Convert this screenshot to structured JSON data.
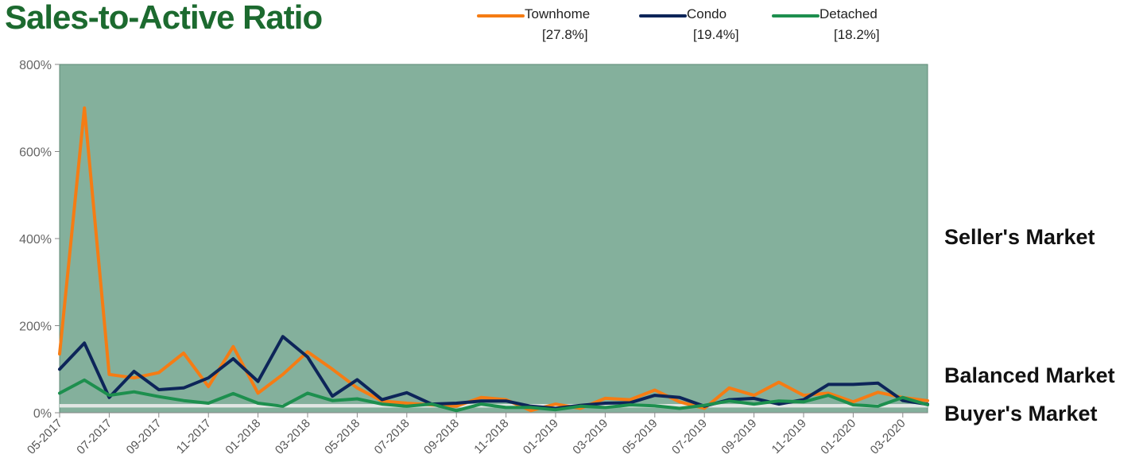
{
  "title": "Sales-to-Active Ratio",
  "zones": {
    "seller": "Seller's Market",
    "balanced": "Balanced Market",
    "buyer": "Buyer's Market"
  },
  "colors": {
    "plot_bg": "#84b09c",
    "balanced_band": "#e2e6e4",
    "title": "#1c6a2f"
  },
  "chart_data": {
    "type": "line",
    "title": "Sales-to-Active Ratio",
    "ylim": [
      0,
      800
    ],
    "y_unit": "%",
    "y_ticks": [
      "0%",
      "200%",
      "400%",
      "600%",
      "800%"
    ],
    "x": [
      "05-2017",
      "06-2017",
      "07-2017",
      "08-2017",
      "09-2017",
      "10-2017",
      "11-2017",
      "12-2017",
      "01-2018",
      "02-2018",
      "03-2018",
      "04-2018",
      "05-2018",
      "06-2018",
      "07-2018",
      "08-2018",
      "09-2018",
      "10-2018",
      "11-2018",
      "12-2018",
      "01-2019",
      "02-2019",
      "03-2019",
      "04-2019",
      "05-2019",
      "06-2019",
      "07-2019",
      "08-2019",
      "09-2019",
      "10-2019",
      "11-2019",
      "12-2019",
      "01-2020",
      "02-2020",
      "03-2020",
      "04-2020"
    ],
    "x_tick_labels": [
      "05-2017",
      "07-2017",
      "09-2017",
      "11-2017",
      "01-2018",
      "03-2018",
      "05-2018",
      "07-2018",
      "09-2018",
      "11-2018",
      "01-2019",
      "03-2019",
      "05-2019",
      "07-2019",
      "09-2019",
      "11-2019",
      "01-2020",
      "03-2020"
    ],
    "balanced_range": [
      12,
      20
    ],
    "grid": false,
    "legend_position": "top",
    "series": [
      {
        "name": "Townhome",
        "latest": "[27.8%]",
        "color": "#f57c14",
        "values": [
          135,
          700,
          88,
          80,
          92,
          137,
          60,
          152,
          45,
          88,
          140,
          100,
          57,
          27,
          22,
          18,
          15,
          35,
          30,
          5,
          20,
          10,
          33,
          30,
          52,
          25,
          10,
          57,
          40,
          70,
          40,
          45,
          25,
          47,
          35,
          27.8
        ]
      },
      {
        "name": "Condo",
        "latest": "[19.4%]",
        "color": "#0d2559",
        "values": [
          100,
          160,
          35,
          95,
          53,
          57,
          80,
          124,
          72,
          175,
          128,
          38,
          76,
          30,
          46,
          20,
          22,
          27,
          27,
          15,
          10,
          17,
          22,
          23,
          40,
          35,
          15,
          30,
          33,
          20,
          30,
          65,
          65,
          68,
          28,
          19.4
        ]
      },
      {
        "name": "Detached",
        "latest": "[18.2%]",
        "color": "#1d8f4e",
        "values": [
          45,
          75,
          40,
          48,
          37,
          28,
          22,
          44,
          22,
          15,
          45,
          28,
          32,
          20,
          15,
          20,
          5,
          20,
          12,
          12,
          7,
          15,
          12,
          18,
          16,
          10,
          17,
          27,
          20,
          27,
          25,
          40,
          18,
          15,
          35,
          18.2
        ]
      }
    ]
  }
}
